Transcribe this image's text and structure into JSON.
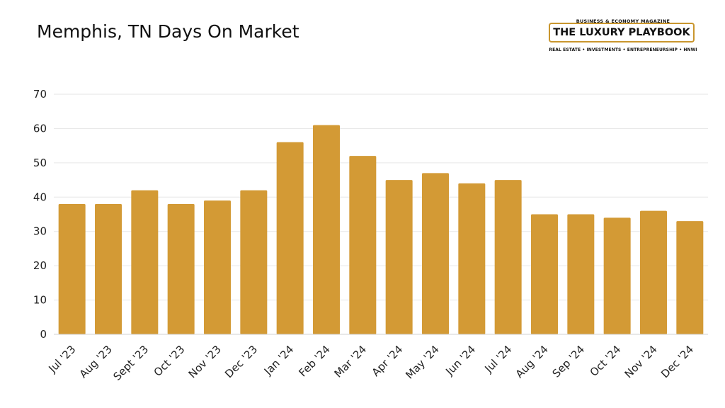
{
  "page": {
    "title": "Memphis, TN Days On Market"
  },
  "logo": {
    "tagline": "BUSINESS & ECONOMY MAGAZINE",
    "name": "THE LUXURY PLAYBOOK",
    "subtitle": "REAL ESTATE • INVESTMENTS • ENTREPRENEURSHIP • HNWI",
    "accent_color": "#c9962e"
  },
  "chart_data": {
    "type": "bar",
    "title": "Memphis, TN Days On Market",
    "xlabel": "",
    "ylabel": "",
    "categories": [
      "Jul '23",
      "Aug '23",
      "Sept '23",
      "Oct '23",
      "Nov '23",
      "Dec '23",
      "Jan '24",
      "Feb '24",
      "Mar '24",
      "Apr '24",
      "May '24",
      "Jun '24",
      "Jul '24",
      "Aug '24",
      "Sep '24",
      "Oct '24",
      "Nov '24",
      "Dec '24"
    ],
    "values": [
      38,
      38,
      42,
      38,
      39,
      42,
      56,
      61,
      52,
      45,
      47,
      44,
      45,
      35,
      35,
      34,
      36,
      33
    ],
    "ylim": [
      0,
      70
    ],
    "yticks": [
      0,
      10,
      20,
      30,
      40,
      50,
      60,
      70
    ],
    "grid": true,
    "bar_color": "#d39a35",
    "grid_color": "#e6e6e6"
  }
}
